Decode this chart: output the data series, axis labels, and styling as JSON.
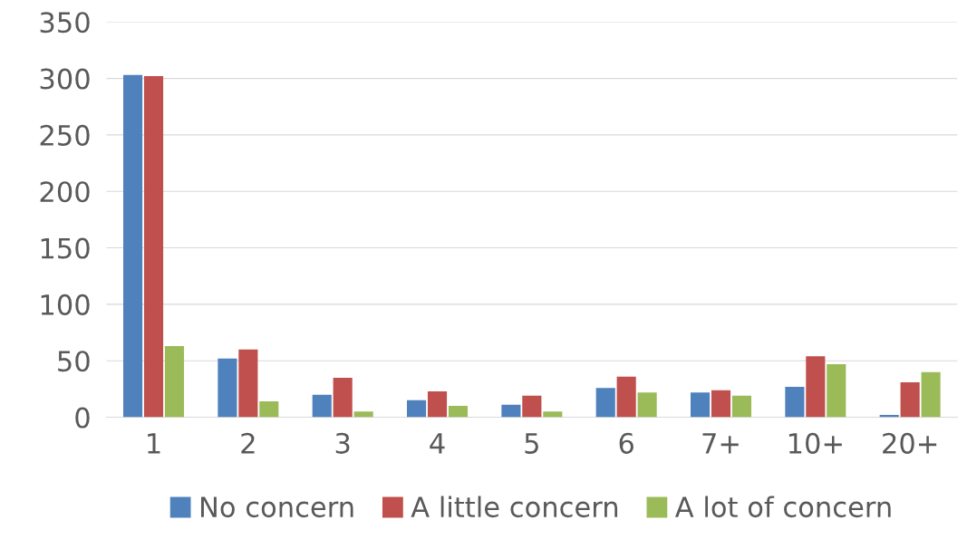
{
  "chart_data": {
    "type": "bar",
    "categories": [
      "1",
      "2",
      "3",
      "4",
      "5",
      "6",
      "7+",
      "10+",
      "20+"
    ],
    "series": [
      {
        "name": "No concern",
        "color": "#4f81bd",
        "values": [
          303,
          52,
          20,
          15,
          11,
          26,
          22,
          27,
          2
        ]
      },
      {
        "name": "A little concern",
        "color": "#c0504d",
        "values": [
          302,
          60,
          35,
          23,
          19,
          36,
          24,
          54,
          31
        ]
      },
      {
        "name": "A lot of concern",
        "color": "#9bbb59",
        "values": [
          63,
          14,
          5,
          10,
          5,
          22,
          19,
          47,
          40
        ]
      }
    ],
    "ylim": [
      0,
      350
    ],
    "yticks": [
      0,
      50,
      100,
      150,
      200,
      250,
      300,
      350
    ],
    "grid": "y",
    "legend": "bottom"
  }
}
